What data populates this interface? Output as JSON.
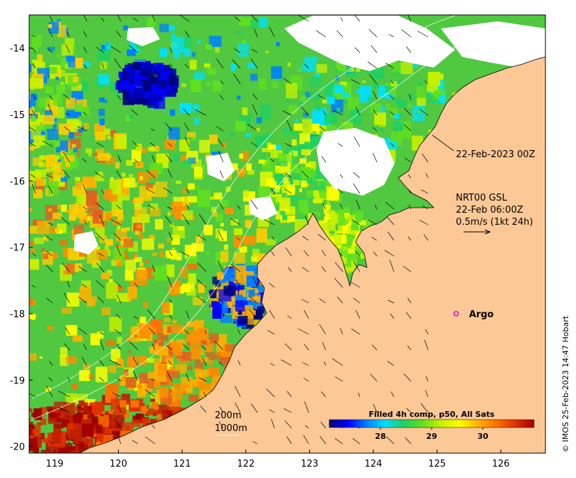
{
  "map": {
    "lat_ticks": [
      "-14",
      "-15",
      "-16",
      "-17",
      "-18",
      "-19",
      "-20"
    ],
    "lon_ticks": [
      "119",
      "120",
      "121",
      "122",
      "123",
      "124",
      "125",
      "126"
    ],
    "lat_range": [
      -20.1,
      -13.5
    ],
    "lon_range": [
      118.6,
      126.7
    ]
  },
  "annotations": {
    "date_label": "22-Feb-2023 00Z",
    "current_lines": [
      "NRT00 GSL",
      "22-Feb 06:00Z",
      "0.5m/s (1kt 24h)"
    ],
    "contour_200": "200m",
    "contour_1000": "1000m"
  },
  "argo": {
    "label": "Argo",
    "lon": 125.3,
    "lat": -18.0,
    "color": "#e000e0"
  },
  "colorbar": {
    "title": "Filled 4h comp, p50, All Sats",
    "tick_labels": [
      "28",
      "29",
      "30"
    ],
    "tick_values": [
      28,
      29,
      30
    ],
    "range": [
      27.0,
      31.0
    ],
    "stops": [
      "#00007f",
      "#0000ff",
      "#0080ff",
      "#00e0ff",
      "#20d060",
      "#60e020",
      "#c8f000",
      "#ffff00",
      "#ffb000",
      "#ff7000",
      "#e03000",
      "#a00000"
    ]
  },
  "credit": "© IMOS 25-Feb-2023 14:47 Hobart",
  "colors": {
    "land": "#fcc896",
    "nodata": "#ffffff"
  }
}
